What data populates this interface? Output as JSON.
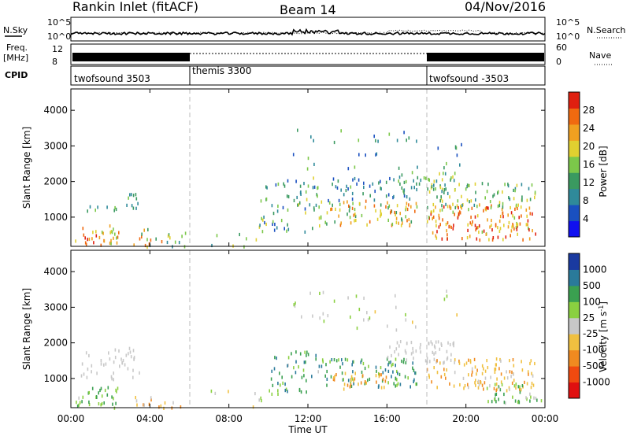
{
  "header": {
    "station": "Rankin Inlet (fitACF)",
    "beam": "Beam 14",
    "date": "04/Nov/2016"
  },
  "noise_panel": {
    "left_label": "N.Sky",
    "right_label": "N.Search",
    "left_ticks": [
      "10^5",
      "10^0"
    ],
    "right_ticks": [
      "10^5",
      "10^0"
    ]
  },
  "freq_panel": {
    "left_label_top": "Freq.",
    "left_label_unit": "[MHz]",
    "right_label": "Nave",
    "left_ticks": [
      "12",
      "8"
    ],
    "right_ticks": [
      "60",
      "0"
    ]
  },
  "cpid_panel": {
    "label": "CPID",
    "segments": [
      {
        "start_hour": 0,
        "label": "twofsound 3503"
      },
      {
        "start_hour": 6,
        "label": "themis 3300"
      },
      {
        "start_hour": 18,
        "label": "twofsound -3503"
      }
    ]
  },
  "x_axis": {
    "label": "Time UT",
    "ticks": [
      "00:00",
      "04:00",
      "08:00",
      "12:00",
      "16:00",
      "20:00",
      "00:00"
    ],
    "range_hours": [
      0,
      24
    ]
  },
  "chart_data": [
    {
      "type": "heatmap",
      "title": "Power",
      "ylabel": "Slant Range [km]",
      "ylim": [
        180,
        4600
      ],
      "yticks": [
        "4000",
        "3000",
        "2000",
        "1000"
      ],
      "colorbar": {
        "label": "Power [dB]",
        "ticks": [
          "28",
          "24",
          "20",
          "16",
          "12",
          "8",
          "4"
        ],
        "range": [
          0,
          30
        ],
        "colors": [
          "#1010f0",
          "#1a50c0",
          "#2f8a9a",
          "#3a9a60",
          "#7cc84a",
          "#e0d030",
          "#f0a020",
          "#f06a10",
          "#e02010"
        ]
      },
      "scatter_regions": [
        {
          "t": [
            0.2,
            2.4
          ],
          "r": [
            200,
            800
          ],
          "value": [
            14,
            30
          ],
          "density": 0.55
        },
        {
          "t": [
            0.8,
            2.5
          ],
          "r": [
            1150,
            1350
          ],
          "value": [
            6,
            16
          ],
          "density": 0.5
        },
        {
          "t": [
            2.8,
            3.5
          ],
          "r": [
            1200,
            1900
          ],
          "value": [
            4,
            14
          ],
          "density": 0.5
        },
        {
          "t": [
            2.8,
            5.8
          ],
          "r": [
            200,
            700
          ],
          "value": [
            6,
            26
          ],
          "density": 0.35
        },
        {
          "t": [
            6.5,
            9.5
          ],
          "r": [
            200,
            600
          ],
          "value": [
            6,
            20
          ],
          "density": 0.12
        },
        {
          "t": [
            9.5,
            12.5
          ],
          "r": [
            600,
            2200
          ],
          "value": [
            4,
            18
          ],
          "density": 0.3
        },
        {
          "t": [
            12.5,
            17.5
          ],
          "r": [
            800,
            1500
          ],
          "value": [
            10,
            26
          ],
          "density": 0.55
        },
        {
          "t": [
            13,
            17.5
          ],
          "r": [
            1500,
            2200
          ],
          "value": [
            4,
            14
          ],
          "density": 0.3
        },
        {
          "t": [
            16.5,
            19.5
          ],
          "r": [
            1700,
            2300
          ],
          "value": [
            8,
            18
          ],
          "density": 0.5
        },
        {
          "t": [
            18,
            23.5
          ],
          "r": [
            400,
            1400
          ],
          "value": [
            16,
            30
          ],
          "density": 0.6
        },
        {
          "t": [
            18,
            23.5
          ],
          "r": [
            1300,
            2000
          ],
          "value": [
            8,
            20
          ],
          "density": 0.45
        },
        {
          "t": [
            11,
            20
          ],
          "r": [
            2400,
            3500
          ],
          "value": [
            4,
            16
          ],
          "density": 0.08
        }
      ]
    },
    {
      "type": "heatmap",
      "title": "Velocity",
      "ylabel": "Slant Range [km]",
      "ylim": [
        180,
        4600
      ],
      "yticks": [
        "4000",
        "3000",
        "2000",
        "1000"
      ],
      "colorbar": {
        "label": "Velocity [m s^-1]",
        "ticks": [
          "1000",
          "500",
          "100",
          "25",
          "-25",
          "-100",
          "-500",
          "-1000"
        ],
        "range": [
          -1200,
          1200
        ],
        "colors": [
          "#e01010",
          "#f04a10",
          "#f08a20",
          "#f0c040",
          "#c8c8c8",
          "#8ad040",
          "#3aa050",
          "#2a7a9a",
          "#1a3aa0"
        ]
      },
      "scatter_regions": [
        {
          "t": [
            0.2,
            2.5
          ],
          "r": [
            200,
            800
          ],
          "value": [
            100,
            700
          ],
          "density": 0.55
        },
        {
          "t": [
            0.5,
            3.5
          ],
          "r": [
            1000,
            1900
          ],
          "value": [
            -25,
            25
          ],
          "density": 0.35
        },
        {
          "t": [
            3,
            5.8
          ],
          "r": [
            200,
            600
          ],
          "value": [
            -500,
            25
          ],
          "density": 0.3
        },
        {
          "t": [
            7,
            10
          ],
          "r": [
            200,
            700
          ],
          "value": [
            -200,
            300
          ],
          "density": 0.12
        },
        {
          "t": [
            10,
            12.5
          ],
          "r": [
            600,
            1800
          ],
          "value": [
            100,
            800
          ],
          "density": 0.35
        },
        {
          "t": [
            12.5,
            17.5
          ],
          "r": [
            800,
            1600
          ],
          "value": [
            200,
            900
          ],
          "density": 0.5
        },
        {
          "t": [
            13,
            16
          ],
          "r": [
            700,
            1200
          ],
          "value": [
            -600,
            -100
          ],
          "density": 0.45
        },
        {
          "t": [
            16,
            19.5
          ],
          "r": [
            1500,
            2100
          ],
          "value": [
            -25,
            25
          ],
          "density": 0.55
        },
        {
          "t": [
            18,
            23.5
          ],
          "r": [
            700,
            1600
          ],
          "value": [
            -500,
            -50
          ],
          "density": 0.5
        },
        {
          "t": [
            21,
            23.8
          ],
          "r": [
            300,
            900
          ],
          "value": [
            50,
            600
          ],
          "density": 0.5
        },
        {
          "t": [
            11,
            20
          ],
          "r": [
            2400,
            3500
          ],
          "value": [
            -200,
            300
          ],
          "density": 0.08
        }
      ]
    }
  ]
}
